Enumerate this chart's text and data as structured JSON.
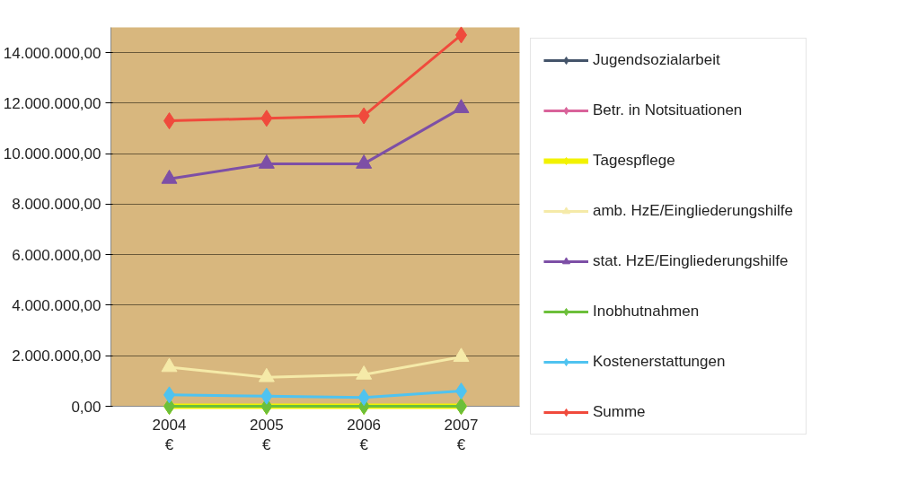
{
  "chart_data": {
    "type": "line",
    "categories": [
      "2004\n€",
      "2005\n€",
      "2006\n€",
      "2007\n€"
    ],
    "ylim": [
      0,
      15000000
    ],
    "yticks": [
      {
        "value": 0,
        "label": "0,00"
      },
      {
        "value": 2000000,
        "label": "2.000.000,00"
      },
      {
        "value": 4000000,
        "label": "4.000.000,00"
      },
      {
        "value": 6000000,
        "label": "6.000.000,00"
      },
      {
        "value": 8000000,
        "label": "8.000.000,00"
      },
      {
        "value": 10000000,
        "label": "10.000.000,00"
      },
      {
        "value": 12000000,
        "label": "12.000.000,00"
      },
      {
        "value": 14000000,
        "label": "14.000.000,00"
      }
    ],
    "grid": "y",
    "legend": "right",
    "series": [
      {
        "name": "Jugendsozialarbeit",
        "color": "#44546a",
        "marker": "diamond",
        "values": [
          null,
          null,
          null,
          null
        ]
      },
      {
        "name": "Betr. in Notsituationen",
        "color": "#d9639a",
        "marker": "diamond",
        "values": [
          null,
          null,
          null,
          null
        ]
      },
      {
        "name": "Tagespflege",
        "color": "#f2f200",
        "marker": "diamond",
        "values": [
          0,
          0,
          0,
          0
        ]
      },
      {
        "name": "amb. HzE/Eingliederungshilfe",
        "color": "#f5eaa8",
        "marker": "triangle",
        "values": [
          1550000,
          1150000,
          1250000,
          1950000
        ]
      },
      {
        "name": "stat. HzE/Eingliederungshilfe",
        "color": "#7d4fa6",
        "marker": "triangle",
        "values": [
          9000000,
          9600000,
          9600000,
          11800000
        ]
      },
      {
        "name": "Inobhutnahmen",
        "color": "#6cbf3a",
        "marker": "diamond",
        "values": [
          0,
          0,
          0,
          0
        ]
      },
      {
        "name": "Kostenerstattungen",
        "color": "#4fc3f0",
        "marker": "diamond",
        "values": [
          450000,
          400000,
          350000,
          600000
        ]
      },
      {
        "name": "Summe",
        "color": "#f04a3c",
        "marker": "diamond",
        "values": [
          11300000,
          11400000,
          11500000,
          14700000
        ]
      }
    ]
  }
}
